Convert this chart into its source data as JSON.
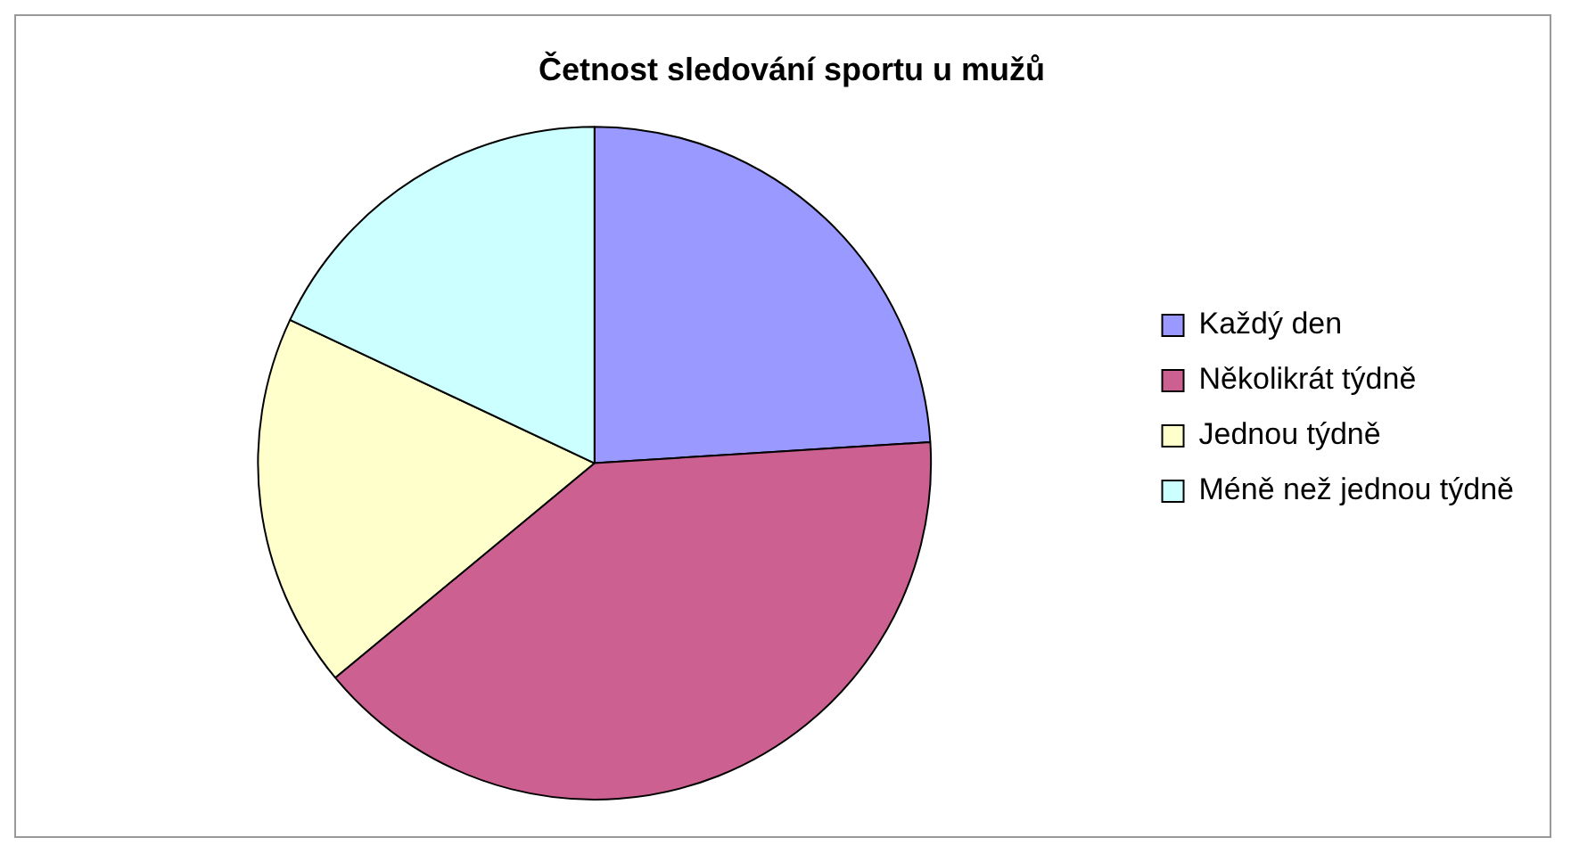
{
  "chart_data": {
    "type": "pie",
    "title": "Četnost sledování sportu u mužů",
    "categories": [
      "Každý den",
      "Několikrát týdně",
      "Jednou týdně",
      "Méně než jednou týdně"
    ],
    "values": [
      24,
      40,
      18,
      18
    ],
    "colors": [
      "#9999ff",
      "#cc6090",
      "#ffffcc",
      "#ccffff"
    ],
    "legend": "right"
  }
}
